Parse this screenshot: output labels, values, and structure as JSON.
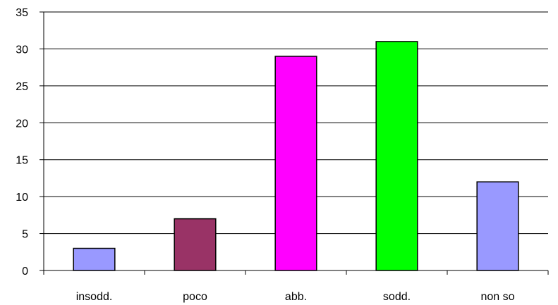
{
  "chart_data": {
    "type": "bar",
    "title": "",
    "xlabel": "",
    "ylabel": "",
    "categories": [
      "insodd.",
      "poco",
      "abb.",
      "sodd.",
      "non so"
    ],
    "values": [
      3,
      7,
      29,
      31,
      12
    ],
    "colors": [
      "#9999FF",
      "#993366",
      "#FF00FF",
      "#00FF00",
      "#9999FF"
    ],
    "ylim": [
      0,
      35
    ],
    "yticks": [
      0,
      5,
      10,
      15,
      20,
      25,
      30,
      35
    ],
    "grid": true,
    "legend": "none"
  }
}
